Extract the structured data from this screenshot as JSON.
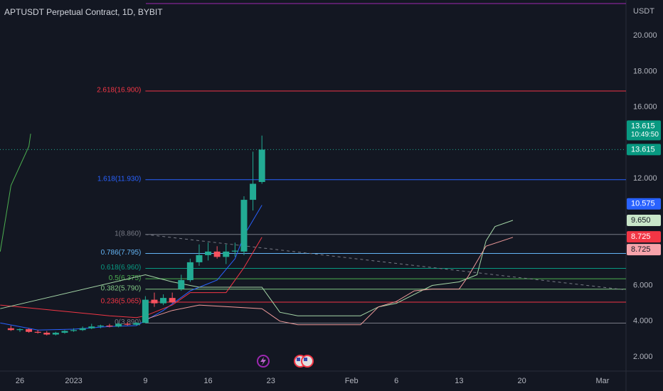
{
  "chart_data": {
    "type": "candlestick",
    "title": "APTUSDT Perpetual Contract, 1D, BYBIT",
    "currency": "USDT",
    "xlim": [
      -2.22,
      67.62
    ],
    "ylim": [
      1.2,
      22
    ],
    "xticks": [
      {
        "value": 0,
        "label": "26"
      },
      {
        "value": 6,
        "label": "2023"
      },
      {
        "value": 14,
        "label": "9"
      },
      {
        "value": 21,
        "label": "16"
      },
      {
        "value": 28,
        "label": "23"
      },
      {
        "value": 37,
        "label": "Feb"
      },
      {
        "value": 42,
        "label": "6"
      },
      {
        "value": 49,
        "label": "13"
      },
      {
        "value": 56,
        "label": "20"
      },
      {
        "value": 65,
        "label": "Mar"
      }
    ],
    "yticks": [
      {
        "value": 2,
        "label": "2.000"
      },
      {
        "value": 4,
        "label": "4.000"
      },
      {
        "value": 6,
        "label": "6.000"
      },
      {
        "value": 12,
        "label": "12.000"
      },
      {
        "value": 16,
        "label": "16.000"
      },
      {
        "value": 18,
        "label": "18.000"
      },
      {
        "value": 20,
        "label": "20.000"
      }
    ],
    "up_color": "#22ab94",
    "down_color": "#f7525f",
    "x": [
      -1,
      0,
      1,
      2,
      3,
      4,
      5,
      6,
      7,
      8,
      9,
      10,
      11,
      12,
      13,
      14,
      15,
      16,
      17,
      18,
      19,
      20,
      21,
      22,
      23,
      24,
      25,
      26,
      27
    ],
    "open": [
      3.6,
      3.5,
      3.55,
      3.4,
      3.35,
      3.25,
      3.35,
      3.45,
      3.5,
      3.6,
      3.7,
      3.75,
      3.7,
      3.85,
      3.8,
      3.9,
      5.2,
      5.0,
      5.3,
      5.8,
      6.3,
      7.3,
      7.7,
      7.9,
      7.6,
      7.9,
      7.9,
      10.8,
      11.8
    ],
    "high": [
      3.75,
      3.6,
      3.6,
      3.5,
      3.45,
      3.4,
      3.5,
      3.6,
      3.7,
      3.85,
      3.8,
      3.85,
      3.9,
      3.95,
      3.95,
      5.4,
      5.6,
      5.5,
      5.6,
      6.6,
      7.5,
      8.3,
      8.4,
      8.2,
      8.3,
      8.4,
      11.0,
      13.5,
      14.4
    ],
    "low": [
      3.45,
      3.4,
      3.35,
      3.3,
      3.2,
      3.2,
      3.3,
      3.4,
      3.45,
      3.55,
      3.6,
      3.65,
      3.65,
      3.75,
      3.75,
      3.89,
      4.8,
      4.9,
      5.0,
      5.7,
      6.2,
      7.1,
      7.4,
      7.5,
      7.2,
      7.6,
      7.7,
      10.2,
      11.7
    ],
    "close": [
      3.5,
      3.55,
      3.4,
      3.35,
      3.25,
      3.35,
      3.45,
      3.5,
      3.6,
      3.7,
      3.75,
      3.7,
      3.85,
      3.8,
      3.9,
      5.2,
      5.0,
      5.3,
      5.05,
      6.3,
      7.3,
      7.7,
      7.9,
      7.6,
      7.9,
      7.95,
      10.8,
      11.7,
      13.615
    ],
    "lines": [
      {
        "color": "#2962ff",
        "x": [
          -2.2,
          2,
          6,
          10,
          13,
          16,
          19,
          22,
          24,
          25,
          27
        ],
        "values": [
          3.9,
          3.5,
          3.55,
          3.7,
          3.75,
          4.6,
          5.7,
          6.3,
          7.5,
          8.8,
          10.5
        ]
      },
      {
        "color": "#f23645",
        "x": [
          -2.2,
          4,
          10,
          13,
          14,
          17,
          19,
          23,
          25,
          27
        ],
        "values": [
          4.9,
          4.6,
          4.3,
          4.2,
          4.3,
          4.9,
          5.6,
          5.6,
          7.0,
          8.7
        ]
      },
      {
        "color": "#4caf50",
        "x": [
          -2.2,
          -1,
          1,
          1.2
        ],
        "values": [
          7.9,
          11.6,
          13.8,
          14.5
        ]
      },
      {
        "color": "#a5d6a7",
        "x": [
          -2.2,
          14,
          17,
          20,
          27,
          29,
          31,
          38,
          40,
          42,
          44,
          46,
          49,
          51,
          52,
          53,
          55
        ],
        "values": [
          4.7,
          6.6,
          6.2,
          5.9,
          5.9,
          4.5,
          4.3,
          4.3,
          4.8,
          5.0,
          5.5,
          6.0,
          6.2,
          6.6,
          8.5,
          9.3,
          9.65
        ]
      },
      {
        "color": "#ef9a9a",
        "x": [
          14,
          17,
          20,
          27,
          29,
          31,
          38,
          40,
          42,
          44,
          46,
          49,
          50,
          52,
          55
        ],
        "values": [
          4.1,
          4.6,
          4.9,
          4.7,
          4.0,
          3.8,
          3.8,
          4.8,
          5.1,
          5.7,
          5.8,
          5.8,
          6.5,
          8.2,
          8.7
        ]
      }
    ],
    "trendline": {
      "color": "#787b86",
      "x": [
        14,
        67.62
      ],
      "values": [
        8.86,
        5.75
      ]
    },
    "fib_anchor_x": 14,
    "fib_levels": [
      {
        "label": "2.618(16.900)",
        "value": 16.9,
        "color": "#f23645"
      },
      {
        "label": "1.618(11.930)",
        "value": 11.93,
        "color": "#2962ff"
      },
      {
        "label": "1(8.860)",
        "value": 8.86,
        "color": "#787b86"
      },
      {
        "label": "0.786(7.795)",
        "value": 7.795,
        "color": "#64b5f6"
      },
      {
        "label": "0.618(6.960)",
        "value": 6.96,
        "color": "#089981"
      },
      {
        "label": "0.5(6.375)",
        "value": 6.375,
        "color": "#4caf50"
      },
      {
        "label": "0.382(5.790)",
        "value": 5.79,
        "color": "#81c784"
      },
      {
        "label": "0.236(5.065)",
        "value": 5.065,
        "color": "#f23645"
      },
      {
        "label": "0(3.890)",
        "value": 3.89,
        "color": "#787b86"
      }
    ],
    "hlines": [
      {
        "value": 21.8,
        "color": "#9c27b0"
      }
    ],
    "last_price": 13.615,
    "price_labels": [
      {
        "label": "13.615",
        "value": 13.615,
        "countdown": "10:49:50",
        "bg": "#089981",
        "fg": "#ffffff"
      },
      {
        "label": "13.615",
        "value": 13.615,
        "bg": "#089981",
        "fg": "#ffffff"
      },
      {
        "label": "10.575",
        "value": 10.575,
        "bg": "#2962ff",
        "fg": "#ffffff"
      },
      {
        "label": "9.650",
        "value": 9.65,
        "bg": "#c8e6c9",
        "fg": "#131722"
      },
      {
        "label": "8.725",
        "value": 8.725,
        "bg": "#f23645",
        "fg": "#ffffff"
      },
      {
        "label": "8.725",
        "value": 8.725,
        "bg": "#f7a3ab",
        "fg": "#131722"
      }
    ]
  }
}
